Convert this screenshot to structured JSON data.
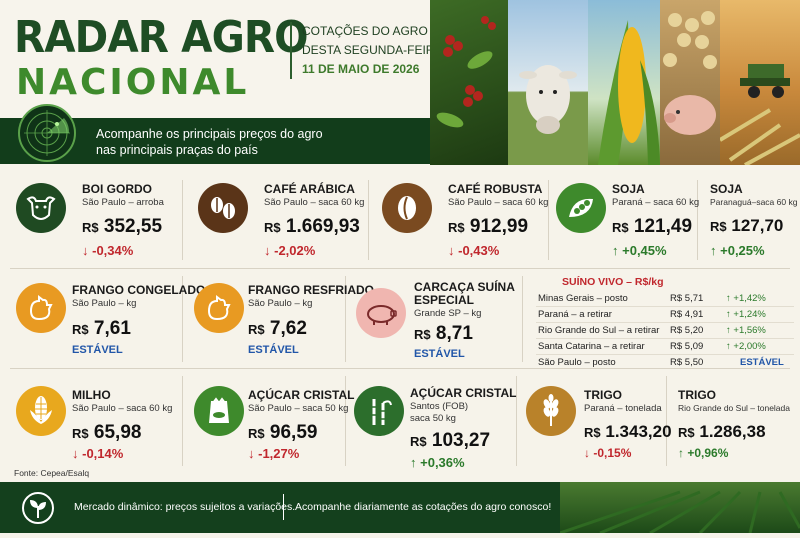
{
  "header": {
    "title_line1": "RADAR AGRO",
    "title_line2": "NACIONAL",
    "sub_line1": "COTAÇÕES DO AGRO",
    "sub_line2": "DESTA SEGUNDA-FEIRA",
    "date": "11 DE MAIO DE 2026",
    "banner_line1": "Acompanhe os principais preços do agro",
    "banner_line2": "nas principais praças do país"
  },
  "cards": {
    "boi": {
      "name": "BOI GORDO",
      "place": "São Paulo – arroba",
      "currency": "R$",
      "price": "352,55",
      "var": "-0,34%"
    },
    "cafe_arabica": {
      "name": "CAFÉ ARÁBICA",
      "place": "São Paulo – saca 60 kg",
      "currency": "R$",
      "price": "1.669,93",
      "var": "-2,02%"
    },
    "cafe_robusta": {
      "name": "CAFÉ ROBUSTA",
      "place": "São Paulo – saca 60 kg",
      "currency": "R$",
      "price": "912,99",
      "var": "-0,43%"
    },
    "soja_pr": {
      "name": "SOJA",
      "place": "Paraná – saca 60 kg",
      "currency": "R$",
      "price": "121,49",
      "var": "+0,45%"
    },
    "soja_pg": {
      "name": "SOJA",
      "place": "Paranaguá–saca 60 kg",
      "currency": "R$",
      "price": "127,70",
      "var": "+0,25%"
    },
    "frango_cong": {
      "name": "FRANGO CONGELADO",
      "place": "São Paulo – kg",
      "currency": "R$",
      "price": "7,61",
      "var": "ESTÁVEL"
    },
    "frango_resf": {
      "name": "FRANGO RESFRIADO",
      "place": "São Paulo – kg",
      "currency": "R$",
      "price": "7,62",
      "var": "ESTÁVEL"
    },
    "carcaca": {
      "name_line1": "CARCAÇA SUÍNA",
      "name_line2": "ESPECIAL",
      "place": "Grande SP – kg",
      "currency": "R$",
      "price": "8,71",
      "var": "ESTÁVEL"
    },
    "milho": {
      "name": "MILHO",
      "place": "São Paulo – saca 60 kg",
      "currency": "R$",
      "price": "65,98",
      "var": "-0,14%"
    },
    "acucar_sp": {
      "name": "AÇÚCAR CRISTAL",
      "place": "São Paulo – saca 50 kg",
      "currency": "R$",
      "price": "96,59",
      "var": "-1,27%"
    },
    "acucar_santos": {
      "name": "AÇÚCAR CRISTAL",
      "place_line1": "Santos (FOB)",
      "place_line2": "saca 50 kg",
      "currency": "R$",
      "price": "103,27",
      "var": "+0,36%"
    },
    "trigo_pr": {
      "name": "TRIGO",
      "place": "Paraná – tonelada",
      "currency": "R$",
      "price": "1.343,20",
      "var": "-0,15%"
    },
    "trigo_rs": {
      "name": "TRIGO",
      "place": "Rio Grande do Sul – tonelada",
      "currency": "R$",
      "price": "1.286,38",
      "var": "+0,96%"
    }
  },
  "suino_vivo": {
    "title": "SUÍNO VIVO – R$/kg",
    "rows": [
      {
        "place": "Minas Gerais – posto",
        "price": "R$ 5,71",
        "var": "+1,42%"
      },
      {
        "place": "Paraná – a retirar",
        "price": "R$ 4,91",
        "var": "+1,24%"
      },
      {
        "place": "Rio Grande do Sul – a retirar",
        "price": "R$ 5,20",
        "var": "+1,56%"
      },
      {
        "place": "Santa Catarina – a retirar",
        "price": "R$ 5,09",
        "var": "+2,00%"
      },
      {
        "place": "São Paulo – posto",
        "price": "R$ 5,50",
        "var": "ESTÁVEL"
      }
    ]
  },
  "footer": {
    "source": "Fonte: Cepea/Esalq",
    "msg1": "Mercado dinâmico: preços sujeitos a variações.",
    "msg2": "Acompanhe diariamente as cotações do agro conosco!"
  },
  "colors": {
    "dark_green": "#1e4d24",
    "green": "#3e8a2c",
    "down": "#c0272d",
    "up": "#2b7a2b",
    "stable": "#2156a8"
  }
}
